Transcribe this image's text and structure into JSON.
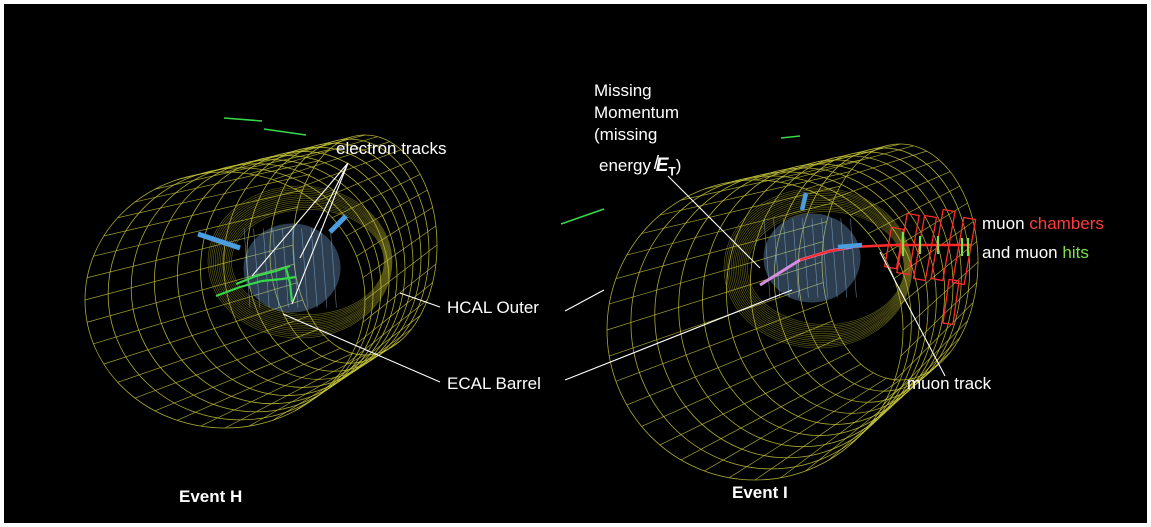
{
  "labels": {
    "electron_tracks": "electron tracks",
    "missing_line1": "Missing",
    "missing_line2": "Momentum",
    "missing_line3": "(missing",
    "missing_line4_text": "energy",
    "missing_symbol": "E",
    "missing_symbol_sub": "T",
    "missing_close": ")",
    "hcal_outer": "HCAL Outer",
    "ecal_barrel": "ECAL Barrel",
    "muon_track": "muon track",
    "muon_word1": "muon",
    "chambers": "chambers",
    "and_muon": "and  muon",
    "hits": "hits",
    "event_h": "Event H",
    "event_i": "Event I"
  },
  "colors": {
    "background": "#000000",
    "frame": "#ffffff",
    "hcal_mesh": "#c9c83a",
    "ecal": "#7fb3e6",
    "electron_track": "#35d84a",
    "muon_track": "#ff2a2a",
    "muon_hits": "#7be04a",
    "missing_momentum": "#d98ce0",
    "leader_line": "#ffffff"
  }
}
